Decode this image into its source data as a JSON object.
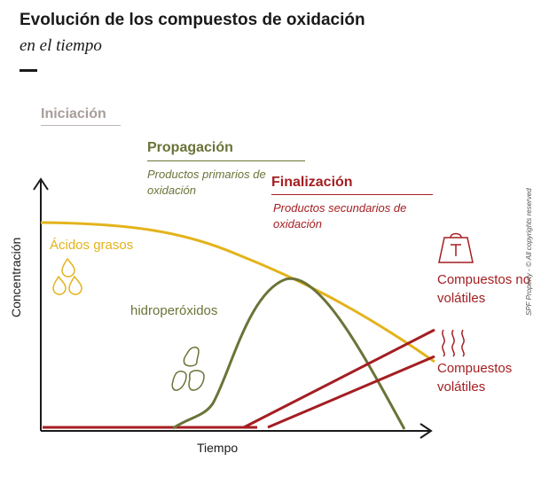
{
  "header": {
    "title": "Evolución de los compuestos de oxidación",
    "subtitle": "en el tiempo"
  },
  "phases": {
    "initiation": {
      "label": "Iniciación",
      "color": "#a89e9a"
    },
    "propagation": {
      "label": "Propagación",
      "sublabel": "Productos primarios de oxidación",
      "color": "#6b7338"
    },
    "finalization": {
      "label": "Finalización",
      "sublabel": "Productos secundarios de oxidación",
      "color": "#a41e22"
    }
  },
  "axes": {
    "x_label": "Tiempo",
    "y_label": "Concentración"
  },
  "series": {
    "fatty_acids": {
      "label": "Ácidos grasos",
      "color": "#e3b31b",
      "icon": "droplets-icon"
    },
    "hydroperoxides": {
      "label": "hidroperóxidos",
      "color": "#6b7338",
      "icon": "flakes-icon"
    },
    "non_volatile": {
      "label": "Compuestos no volátiles",
      "color": "#a41e22",
      "icon": "weight-icon"
    },
    "volatile": {
      "label": "Compuestos volátiles",
      "color": "#a41e22",
      "icon": "vapor-icon"
    }
  },
  "copyright": "SPF Property - © All copyrights reserved"
}
